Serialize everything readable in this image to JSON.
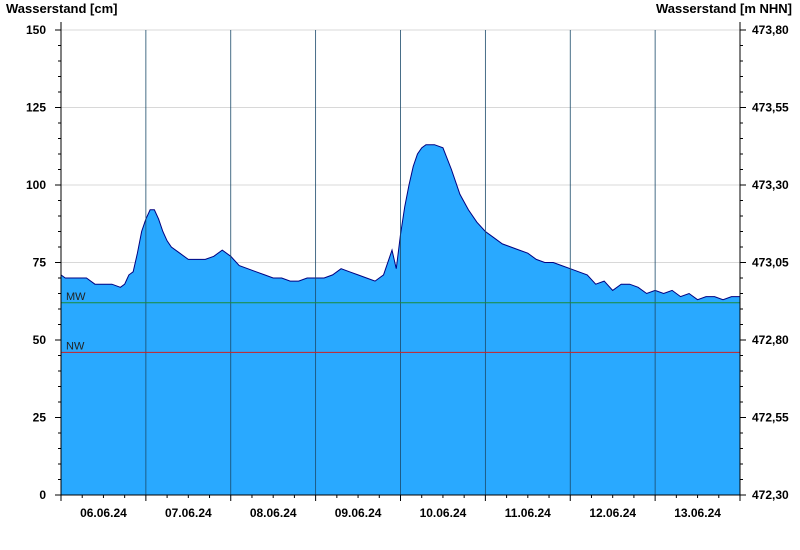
{
  "chart_data": {
    "type": "area",
    "ylabel_left": "Wasserstand [cm]",
    "ylabel_right": "Wasserstand [m NHN]",
    "ylim": [
      0,
      150
    ],
    "y_ticks_left": [
      0,
      25,
      50,
      75,
      100,
      125,
      150
    ],
    "y_ticks_right": [
      "472,30",
      "472,55",
      "472,80",
      "473,05",
      "473,30",
      "473,55",
      "473,80"
    ],
    "x_labels": [
      "06.06.24",
      "07.06.24",
      "08.06.24",
      "09.06.24",
      "10.06.24",
      "11.06.24",
      "12.06.24",
      "13.06.24"
    ],
    "x_range_days": [
      0,
      8
    ],
    "grid": true,
    "colors": {
      "fill": "#29a9ff",
      "line": "#000080",
      "mw": "#1a8a3a",
      "nw": "#cc2222",
      "grid": "#d8d8d8"
    },
    "reference_lines": [
      {
        "label": "MW",
        "value": 62
      },
      {
        "label": "NW",
        "value": 46
      }
    ],
    "series": [
      {
        "x": [
          0,
          0.05,
          0.1,
          0.2,
          0.3,
          0.4,
          0.5,
          0.6,
          0.7,
          0.75,
          0.8,
          0.85,
          0.9,
          0.95,
          1.0,
          1.05,
          1.1,
          1.15,
          1.2,
          1.25,
          1.3,
          1.4,
          1.5,
          1.6,
          1.7,
          1.8,
          1.9,
          2.0,
          2.1,
          2.2,
          2.3,
          2.4,
          2.5,
          2.6,
          2.7,
          2.8,
          2.9,
          3.0,
          3.1,
          3.2,
          3.3,
          3.4,
          3.5,
          3.6,
          3.7,
          3.8,
          3.9,
          3.95,
          4.0,
          4.05,
          4.1,
          4.15,
          4.2,
          4.25,
          4.3,
          4.4,
          4.5,
          4.6,
          4.7,
          4.8,
          4.9,
          5.0,
          5.1,
          5.2,
          5.3,
          5.4,
          5.5,
          5.6,
          5.7,
          5.8,
          5.9,
          6.0,
          6.1,
          6.2,
          6.3,
          6.4,
          6.5,
          6.6,
          6.7,
          6.8,
          6.9,
          7.0,
          7.1,
          7.2,
          7.3,
          7.4,
          7.5,
          7.6,
          7.7,
          7.8,
          7.9,
          8.0
        ],
        "values": [
          71,
          70,
          70,
          70,
          70,
          68,
          68,
          68,
          67,
          68,
          71,
          72,
          78,
          85,
          89,
          92,
          92,
          89,
          85,
          82,
          80,
          78,
          76,
          76,
          76,
          77,
          79,
          77,
          74,
          73,
          72,
          71,
          70,
          70,
          69,
          69,
          70,
          70,
          70,
          71,
          73,
          72,
          71,
          70,
          69,
          71,
          79,
          73,
          84,
          93,
          100,
          106,
          110,
          112,
          113,
          113,
          112,
          105,
          97,
          92,
          88,
          85,
          83,
          81,
          80,
          79,
          78,
          76,
          75,
          75,
          74,
          73,
          72,
          71,
          68,
          69,
          66,
          68,
          68,
          67,
          65,
          66,
          65,
          66,
          64,
          65,
          63,
          64,
          64,
          63,
          64,
          64
        ]
      }
    ]
  }
}
